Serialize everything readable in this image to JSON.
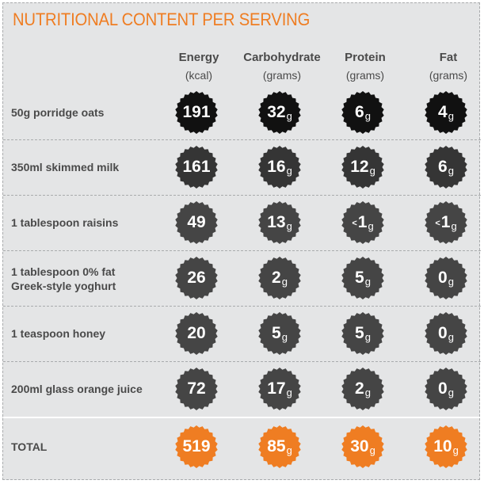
{
  "title": "NUTRITIONAL CONTENT PER SERVING",
  "columns": [
    {
      "name": "Energy",
      "unit": "(kcal)"
    },
    {
      "name": "Carbohydrate",
      "unit": "(grams)"
    },
    {
      "name": "Protein",
      "unit": "(grams)"
    },
    {
      "name": "Fat",
      "unit": "(grams)"
    }
  ],
  "rows": [
    {
      "label": "50g porridge oats",
      "energy": "191",
      "carbohydrate": "32",
      "protein": "6",
      "fat": "4"
    },
    {
      "label": "350ml skimmed milk",
      "energy": "161",
      "carbohydrate": "16",
      "protein": "12",
      "fat": "6"
    },
    {
      "label": "1 tablespoon raisins",
      "energy": "49",
      "carbohydrate": "13",
      "protein": "<1",
      "fat": "<1"
    },
    {
      "label": "1 tablespoon 0% fat Greek-style yoghurt",
      "energy": "26",
      "carbohydrate": "2",
      "protein": "5",
      "fat": "0"
    },
    {
      "label": "1 teaspoon honey",
      "energy": "20",
      "carbohydrate": "5",
      "protein": "5",
      "fat": "0"
    },
    {
      "label": "200ml glass orange juice",
      "energy": "72",
      "carbohydrate": "17",
      "protein": "2",
      "fat": "0"
    }
  ],
  "total": {
    "label": "TOTAL",
    "energy": "519",
    "carbohydrate": "85",
    "protein": "30",
    "fat": "10"
  },
  "gram_unit": "g",
  "colors": {
    "accent": "#ef7d22",
    "row_badges": [
      "#111111",
      "#353535",
      "#454545",
      "#454545",
      "#454545",
      "#454545"
    ],
    "total_badge": "#ef7d22",
    "text": "#4a4a4a",
    "background": "#e4e5e6"
  }
}
